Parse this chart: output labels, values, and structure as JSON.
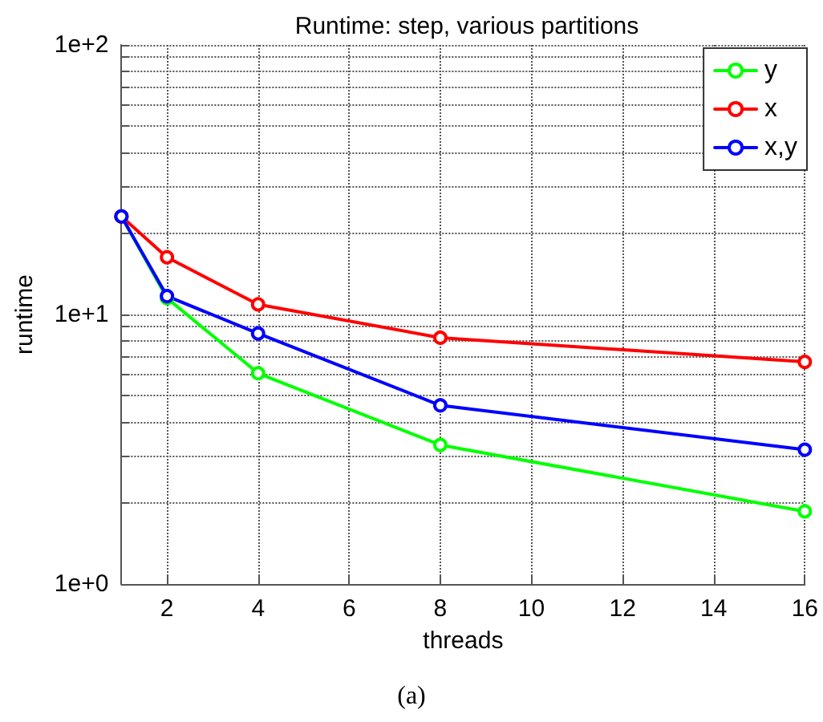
{
  "chart_data": {
    "type": "line",
    "title": "Runtime: step, various partitions",
    "xlabel": "threads",
    "ylabel": "runtime",
    "annotations": [
      "(a)"
    ],
    "x": [
      1,
      2,
      4,
      8,
      16
    ],
    "series": [
      {
        "name": "y",
        "color": "#00ff00",
        "values": [
          23.1,
          11.5,
          6.05,
          3.28,
          1.86
        ]
      },
      {
        "name": "x",
        "color": "#ff0000",
        "values": [
          23.1,
          16.3,
          10.9,
          8.2,
          6.67
        ]
      },
      {
        "name": "x,y",
        "color": "#0000ff",
        "values": [
          23.1,
          11.7,
          8.5,
          4.6,
          3.15
        ]
      }
    ],
    "xlim": [
      1,
      16
    ],
    "xticks": [
      2,
      4,
      6,
      8,
      10,
      12,
      14,
      16
    ],
    "ylim": [
      1,
      100
    ],
    "yticks": [
      {
        "value": 1,
        "label": "1e+0"
      },
      {
        "value": 2,
        "label": null
      },
      {
        "value": 3,
        "label": null
      },
      {
        "value": 4,
        "label": null
      },
      {
        "value": 5,
        "label": null
      },
      {
        "value": 6,
        "label": null
      },
      {
        "value": 7,
        "label": null
      },
      {
        "value": 8,
        "label": null
      },
      {
        "value": 9,
        "label": null
      },
      {
        "value": 10,
        "label": "1e+1"
      },
      {
        "value": 20,
        "label": null
      },
      {
        "value": 30,
        "label": null
      },
      {
        "value": 40,
        "label": null
      },
      {
        "value": 50,
        "label": null
      },
      {
        "value": 60,
        "label": null
      },
      {
        "value": 70,
        "label": null
      },
      {
        "value": 80,
        "label": null
      },
      {
        "value": 90,
        "label": null
      },
      {
        "value": 100,
        "label": "1e+2"
      }
    ],
    "log": "y",
    "grid": true,
    "legend": "top right",
    "marker": "circle",
    "line_style": "solid"
  }
}
